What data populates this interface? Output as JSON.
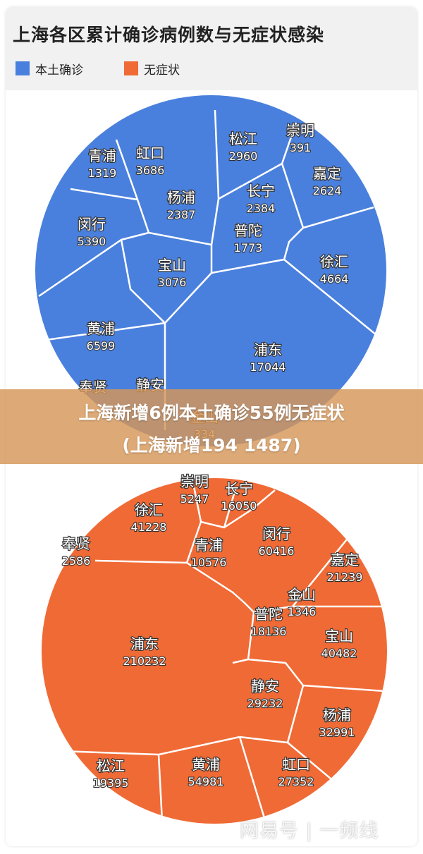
{
  "chart_data": [
    {
      "type": "voronoi-treemap",
      "title": "上海各区累计确诊病例数与无症状感染",
      "legend": [
        "本土确诊",
        "无症状"
      ],
      "legend_placement": "top-left",
      "colors": {
        "本土确诊": "#4a80dd",
        "无症状": "#f06a35",
        "border": "#ffffff"
      },
      "series": [
        {
          "name": "本土确诊",
          "cells": [
            {
              "label": "虹口",
              "value": "3686"
            },
            {
              "label": "松江",
              "value": "2960"
            },
            {
              "label": "崇明",
              "value": "391"
            },
            {
              "label": "青浦",
              "value": "1319"
            },
            {
              "label": "嘉定",
              "value": "2624"
            },
            {
              "label": "杨浦",
              "value": "2387"
            },
            {
              "label": "长宁",
              "value": "2384"
            },
            {
              "label": "闵行",
              "value": "5390"
            },
            {
              "label": "普陀",
              "value": "1773"
            },
            {
              "label": "宝山",
              "value": "3076"
            },
            {
              "label": "徐汇",
              "value": "4664"
            },
            {
              "label": "黄浦",
              "value": "6599"
            },
            {
              "label": "浦东",
              "value": "17044"
            },
            {
              "label": "奉贤",
              "value": ""
            },
            {
              "label": "静安",
              "value": ""
            },
            {
              "label": "金山",
              "value": "334"
            }
          ]
        },
        {
          "name": "无症状",
          "cells": [
            {
              "label": "崇明",
              "value": "5247"
            },
            {
              "label": "长宁",
              "value": "16050"
            },
            {
              "label": "徐汇",
              "value": "41228"
            },
            {
              "label": "闵行",
              "value": "60416"
            },
            {
              "label": "奉贤",
              "value": "2586"
            },
            {
              "label": "青浦",
              "value": "10576"
            },
            {
              "label": "嘉定",
              "value": "21239"
            },
            {
              "label": "金山",
              "value": "1346"
            },
            {
              "label": "普陀",
              "value": "18136"
            },
            {
              "label": "浦东",
              "value": "210232"
            },
            {
              "label": "宝山",
              "value": "40482"
            },
            {
              "label": "静安",
              "value": "29232"
            },
            {
              "label": "杨浦",
              "value": "32991"
            },
            {
              "label": "松江",
              "value": "19395"
            },
            {
              "label": "黄浦",
              "value": "54981"
            },
            {
              "label": "虹口",
              "value": "27352"
            }
          ]
        }
      ]
    }
  ],
  "banner": {
    "line1": "上海新增6例本土确诊55例无症状",
    "line2": "(上海新增194 1487)"
  },
  "watermark": "网易号 | 一频线"
}
